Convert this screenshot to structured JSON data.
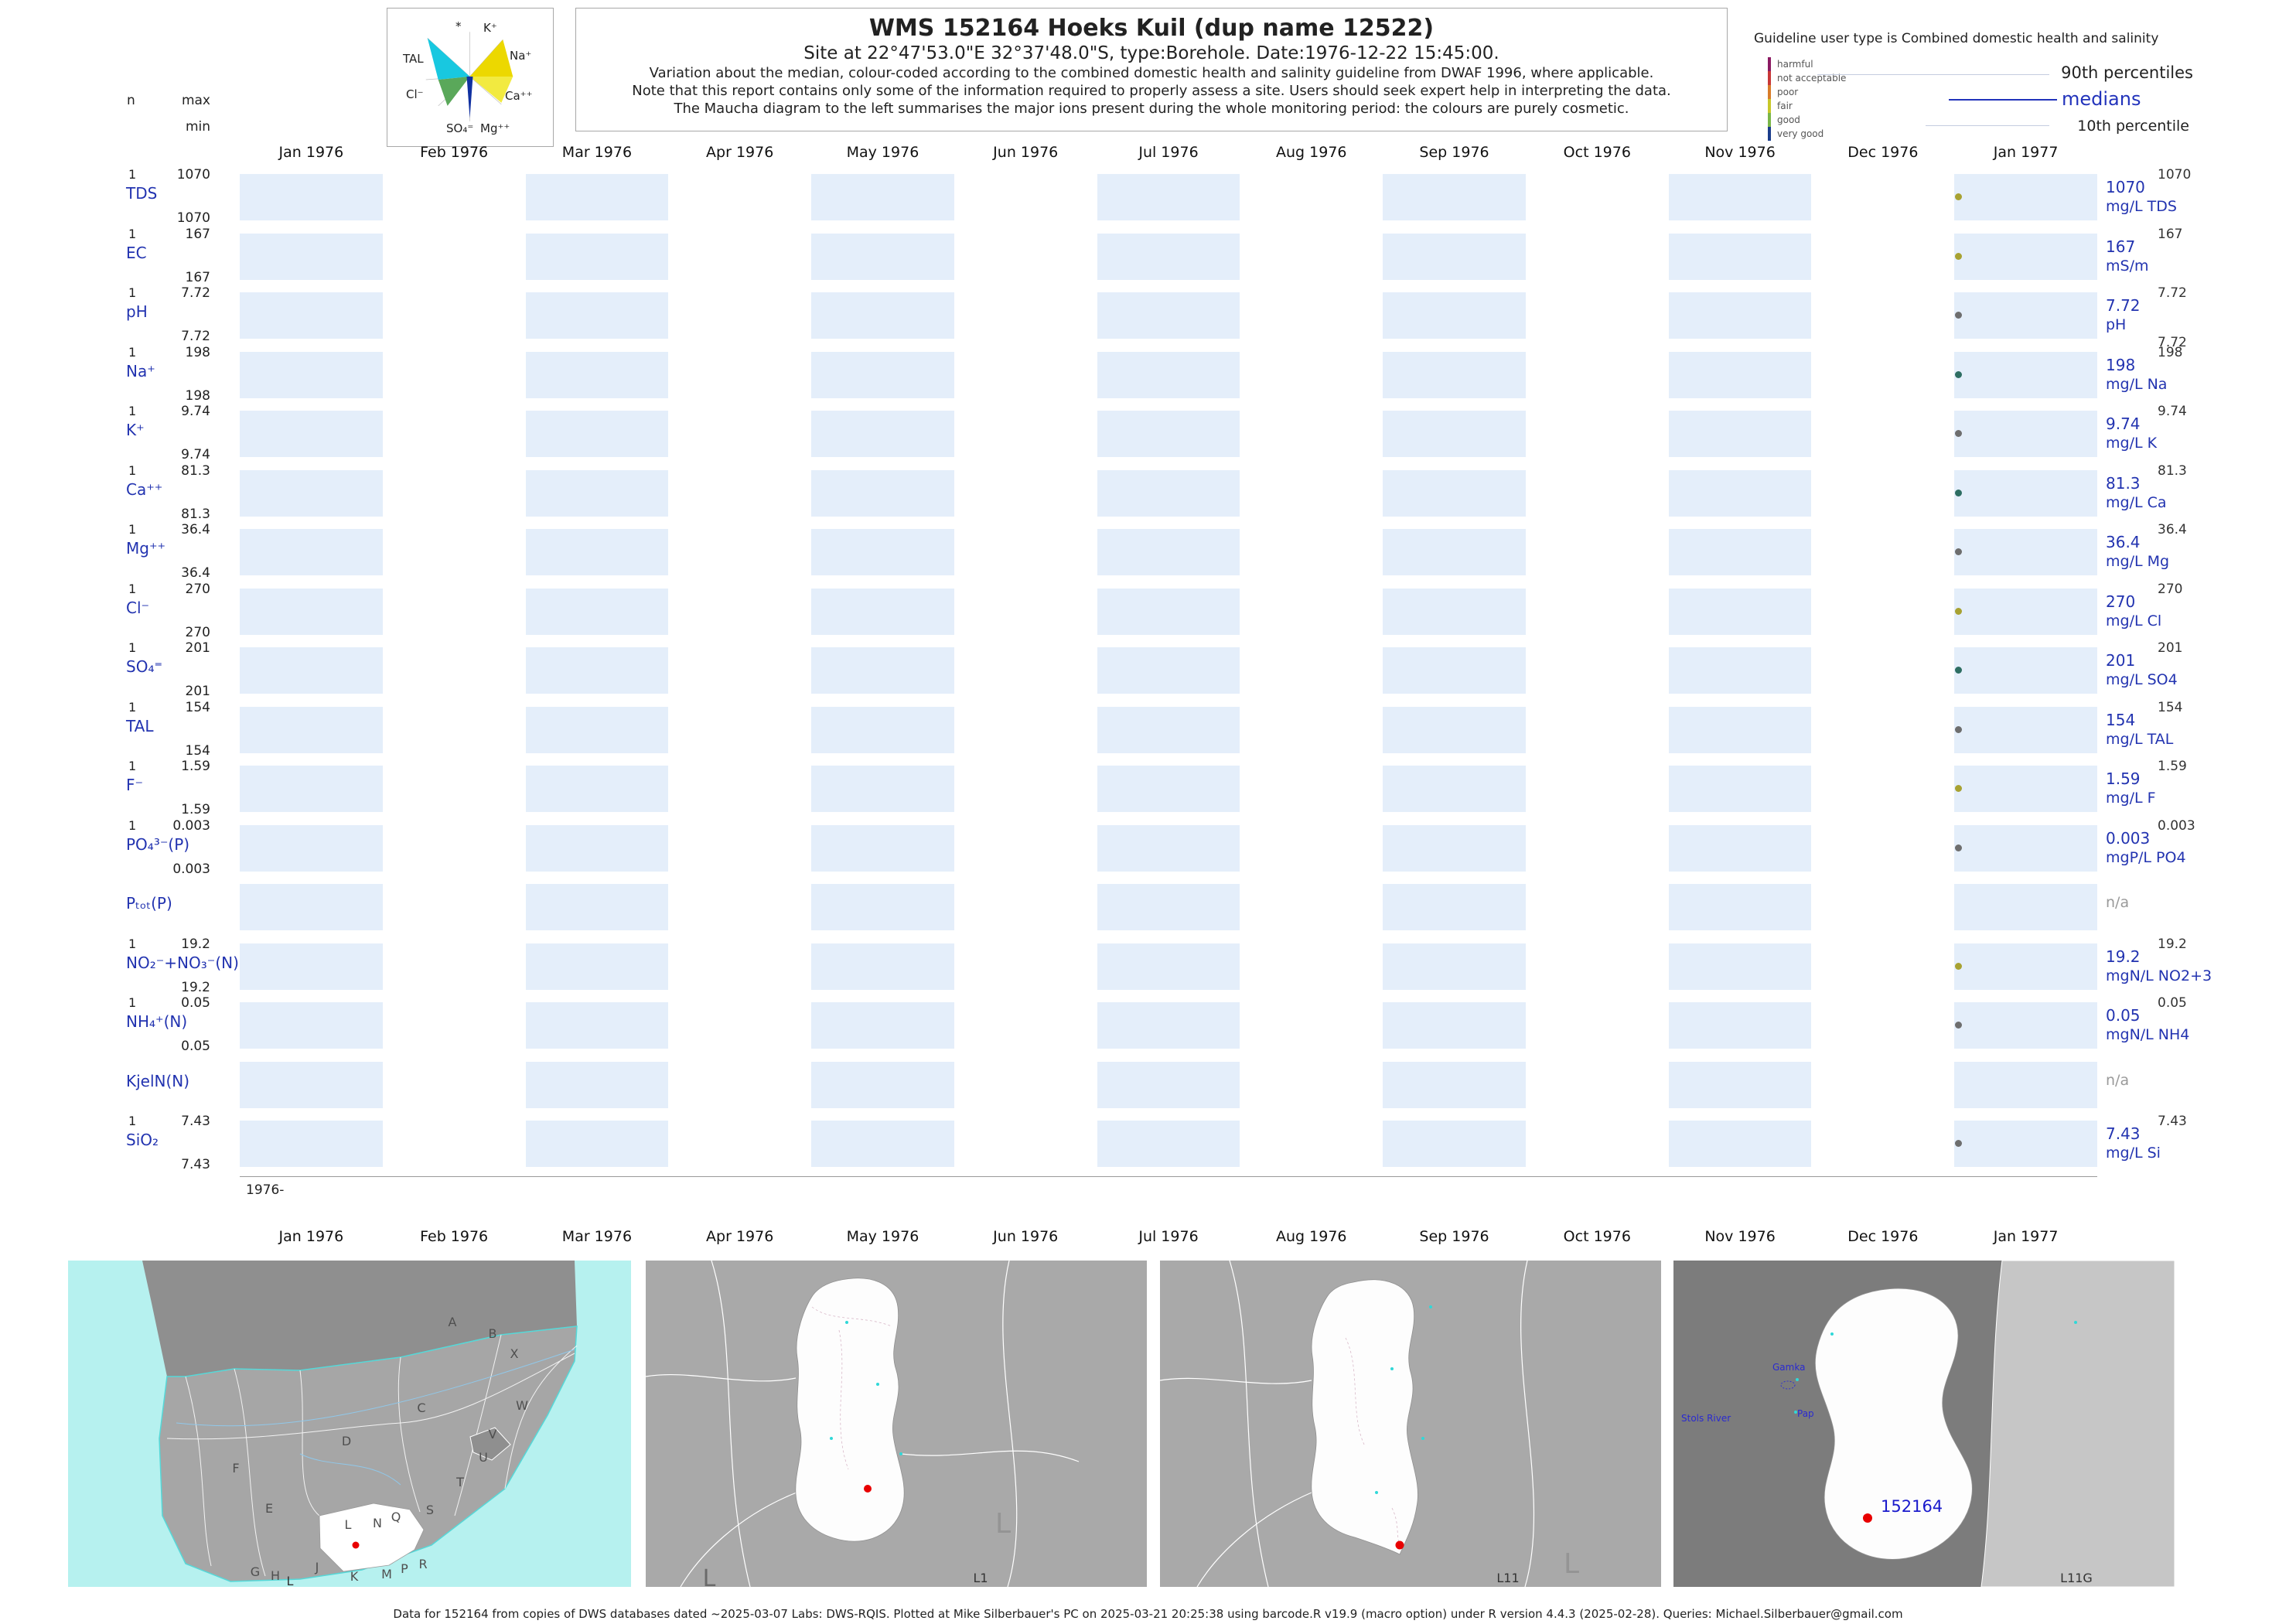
{
  "header": {
    "title": "WMS 152164  Hoeks Kuil (dup name 12522)",
    "subtitle": "Site at 22°47'53.0\"E 32°37'48.0\"S, type:Borehole. Date:1976-12-22 15:45:00.",
    "note1": "Variation about the median,  colour-coded according to the combined domestic health and salinity guideline from DWAF 1996, where applicable.",
    "note2": "Note that this report contains only some of the information required to properly assess a site. Users should seek expert help in interpreting the data.",
    "note3": "The Maucha diagram to the left summarises the major ions present during the whole monitoring period: the colours are purely cosmetic."
  },
  "maucha": {
    "star": "*",
    "k": "K⁺",
    "na": "Na⁺",
    "tal": "TAL",
    "ca": "Ca⁺⁺",
    "cl": "Cl⁻",
    "so4": "SO₄⁼",
    "mg": "Mg⁺⁺"
  },
  "guideline": {
    "title": "Guideline user type is Combined domestic health and salinity",
    "levels": [
      {
        "label": "harmful",
        "color": "#8B1A62"
      },
      {
        "label": "not acceptable",
        "color": "#C83737"
      },
      {
        "label": "poor",
        "color": "#D87C2A"
      },
      {
        "label": "fair",
        "color": "#C8C82A"
      },
      {
        "label": "good",
        "color": "#7AB648"
      },
      {
        "label": "very good",
        "color": "#1A3C8B"
      }
    ],
    "p90_label": "90th percentiles",
    "median_label": "medians",
    "p10_label": "10th percentile"
  },
  "axis": {
    "n_label": "n",
    "max_label": "max",
    "min_label": "min",
    "origin_label": "1976-"
  },
  "chart_data": {
    "type": "scatter",
    "x_tick_labels": [
      "Jan 1976",
      "Feb 1976",
      "Mar 1976",
      "Apr 1976",
      "May 1976",
      "Jun 1976",
      "Jul 1976",
      "Aug 1976",
      "Sep 1976",
      "Oct 1976",
      "Nov 1976",
      "Dec 1976",
      "Jan 1977"
    ],
    "x_range": [
      "Jan 1976",
      "Jan 1977"
    ],
    "sample_date": "1976-12-22 15:45:00",
    "sample_x_fraction": 0.925,
    "na_text": "n/a",
    "rows": [
      {
        "key": "tds",
        "param": "TDS",
        "n": "1",
        "max": "1070",
        "min": "1070",
        "value": 1070,
        "median": "1070",
        "p90": "1070",
        "p10": null,
        "unit": "mg/L TDS",
        "dot_color": "#a8a232",
        "na": false
      },
      {
        "key": "ec",
        "param": "EC",
        "n": "1",
        "max": "167",
        "min": "167",
        "value": 167,
        "median": "167",
        "p90": "167",
        "p10": null,
        "unit": "mS/m",
        "dot_color": "#a8a232",
        "na": false
      },
      {
        "key": "ph",
        "param": "pH",
        "n": "1",
        "max": "7.72",
        "min": "7.72",
        "value": 7.72,
        "median": "7.72",
        "p90": "7.72",
        "p10": "7.72",
        "unit": "pH",
        "dot_color": "#6e6e6e",
        "na": false
      },
      {
        "key": "na",
        "param": "Na⁺",
        "n": "1",
        "max": "198",
        "min": "198",
        "value": 198,
        "median": "198",
        "p90": "198",
        "p10": null,
        "unit": "mg/L Na",
        "dot_color": "#2e6e62",
        "na": false
      },
      {
        "key": "k",
        "param": "K⁺",
        "n": "1",
        "max": "9.74",
        "min": "9.74",
        "value": 9.74,
        "median": "9.74",
        "p90": "9.74",
        "p10": null,
        "unit": "mg/L K",
        "dot_color": "#6e6e6e",
        "na": false
      },
      {
        "key": "ca",
        "param": "Ca⁺⁺",
        "n": "1",
        "max": "81.3",
        "min": "81.3",
        "value": 81.3,
        "median": "81.3",
        "p90": "81.3",
        "p10": null,
        "unit": "mg/L Ca",
        "dot_color": "#2e6e62",
        "na": false
      },
      {
        "key": "mg",
        "param": "Mg⁺⁺",
        "n": "1",
        "max": "36.4",
        "min": "36.4",
        "value": 36.4,
        "median": "36.4",
        "p90": "36.4",
        "p10": null,
        "unit": "mg/L Mg",
        "dot_color": "#6e6e6e",
        "na": false
      },
      {
        "key": "cl",
        "param": "Cl⁻",
        "n": "1",
        "max": "270",
        "min": "270",
        "value": 270,
        "median": "270",
        "p90": "270",
        "p10": null,
        "unit": "mg/L Cl",
        "dot_color": "#a8a232",
        "na": false
      },
      {
        "key": "so4",
        "param": "SO₄⁼",
        "n": "1",
        "max": "201",
        "min": "201",
        "value": 201,
        "median": "201",
        "p90": "201",
        "p10": null,
        "unit": "mg/L SO4",
        "dot_color": "#2e6e62",
        "na": false
      },
      {
        "key": "tal",
        "param": "TAL",
        "n": "1",
        "max": "154",
        "min": "154",
        "value": 154,
        "median": "154",
        "p90": "154",
        "p10": null,
        "unit": "mg/L TAL",
        "dot_color": "#6e6e6e",
        "na": false
      },
      {
        "key": "f",
        "param": "F⁻",
        "n": "1",
        "max": "1.59",
        "min": "1.59",
        "value": 1.59,
        "median": "1.59",
        "p90": "1.59",
        "p10": null,
        "unit": "mg/L F",
        "dot_color": "#a8a232",
        "na": false
      },
      {
        "key": "po4",
        "param": "PO₄³⁻(P)",
        "n": "1",
        "max": "0.003",
        "min": "0.003",
        "value": 0.003,
        "median": "0.003",
        "p90": "0.003",
        "p10": null,
        "unit": "mgP/L PO4",
        "dot_color": "#6e6e6e",
        "na": false
      },
      {
        "key": "ptot",
        "param": "Pₜₒₜ(P)",
        "na": true
      },
      {
        "key": "no23",
        "param": "NO₂⁻+NO₃⁻(N)",
        "n": "1",
        "max": "19.2",
        "min": "19.2",
        "value": 19.2,
        "median": "19.2",
        "p90": "19.2",
        "p10": null,
        "unit": "mgN/L NO2+3",
        "dot_color": "#a8a232",
        "na": false
      },
      {
        "key": "nh4",
        "param": "NH₄⁺(N)",
        "n": "1",
        "max": "0.05",
        "min": "0.05",
        "value": 0.05,
        "median": "0.05",
        "p90": "0.05",
        "p10": null,
        "unit": "mgN/L NH4",
        "dot_color": "#6e6e6e",
        "na": false
      },
      {
        "key": "kjeln",
        "param": "KjelN(N)",
        "na": true
      },
      {
        "key": "sio2",
        "param": "SiO₂",
        "n": "1",
        "max": "7.43",
        "min": "7.43",
        "value": 7.43,
        "median": "7.43",
        "p90": "7.43",
        "p10": null,
        "unit": "mg/L Si",
        "dot_color": "#6e6e6e",
        "na": false
      }
    ]
  },
  "maps": {
    "map1": {
      "label": "L",
      "letters": [
        "A",
        "B",
        "X",
        "C",
        "W",
        "D",
        "V",
        "U",
        "T",
        "F",
        "S",
        "E",
        "L",
        "N",
        "Q",
        "G",
        "H",
        "J",
        "K",
        "M",
        "P",
        "R"
      ]
    },
    "map2": {
      "label": "L1",
      "big_letter": "L",
      "corner_letter": "L"
    },
    "map3": {
      "label": "L11",
      "big_letter": "L"
    },
    "map4": {
      "label": "L11G",
      "site_label": "152164",
      "places": {
        "gamka": "Gamka",
        "stols": "Stols River",
        "pap": "Pap"
      }
    }
  },
  "footer": "Data for 152164 from copies of DWS databases dated ~2025-03-07 Labs: DWS-RQIS. Plotted at Mike Silberbauer's PC on 2025-03-21 20:25:38 using barcode.R v19.9 (macro option) under R version 4.4.3 (2025-02-28). Queries: Michael.Silberbauer@gmail.com"
}
